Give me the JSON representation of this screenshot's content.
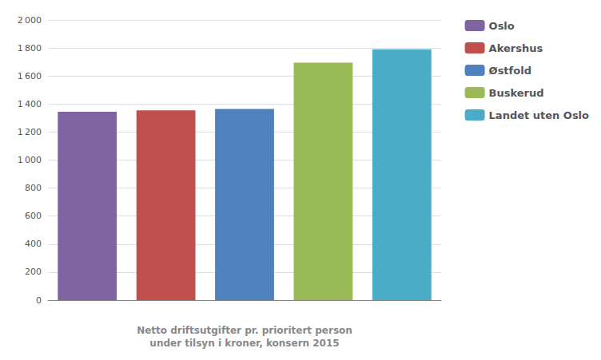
{
  "chart_data": {
    "type": "bar",
    "categories": [
      "Oslo",
      "Akershus",
      "Østfold",
      "Buskerud",
      "Landet uten Oslo"
    ],
    "values": [
      1345,
      1355,
      1365,
      1695,
      1790
    ],
    "colors": [
      "#8064a2",
      "#c0504d",
      "#4f81bd",
      "#9bbb59",
      "#4bacc6"
    ],
    "xlabel": "Netto driftsutgifter pr. prioritert person\nunder tilsyn i kroner, konsern 2015",
    "ylim": [
      0,
      2000
    ],
    "yticks": [
      0,
      200,
      400,
      600,
      800,
      {
        "value": 1000,
        "label": "1 000"
      },
      {
        "value": 1200,
        "label": "1 200"
      },
      {
        "value": 1400,
        "label": "1 400"
      },
      {
        "value": 1600,
        "label": "1 600"
      },
      {
        "value": 1800,
        "label": "1 800"
      },
      {
        "value": 2000,
        "label": "2 000"
      }
    ],
    "grid": true,
    "legend": "right",
    "tick_labels": "y"
  }
}
